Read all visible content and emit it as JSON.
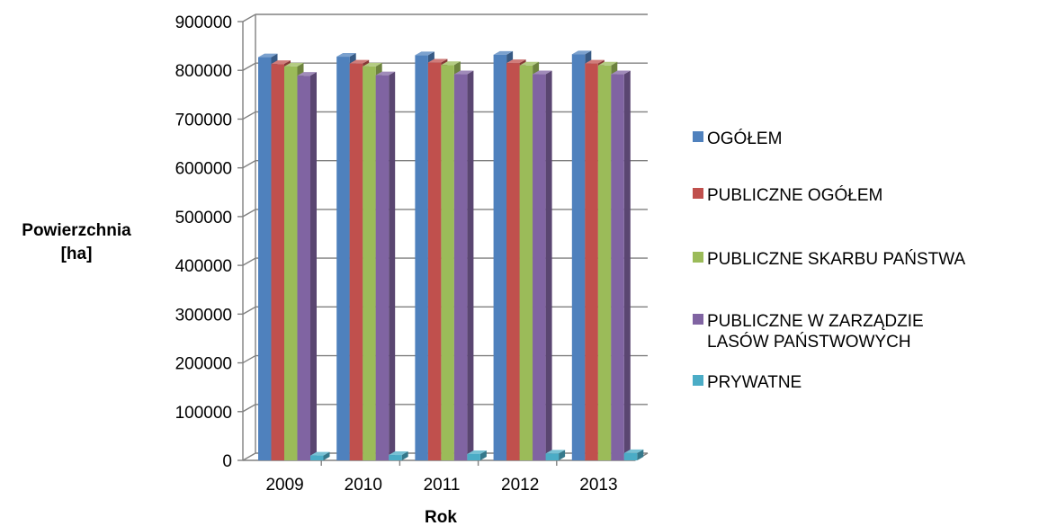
{
  "chart_data": {
    "type": "bar",
    "style": "3d-clustered-column",
    "categories": [
      "2009",
      "2010",
      "2011",
      "2012",
      "2013"
    ],
    "series": [
      {
        "name": "OGÓŁEM",
        "color": "#4F81BD",
        "values": [
          827000,
          828000,
          831000,
          832000,
          833000
        ]
      },
      {
        "name": "PUBLICZNE OGÓŁEM",
        "color": "#C0504D",
        "values": [
          813000,
          814000,
          816000,
          815000,
          814000
        ]
      },
      {
        "name": "PUBLICZNE SKARBU PAŃSTWA",
        "color": "#9BBB59",
        "values": [
          808000,
          808000,
          811000,
          810000,
          810000
        ]
      },
      {
        "name": "PUBLICZNE W ZARZĄDZIE LASÓW PAŃSTWOWYCH",
        "color": "#8064A2",
        "values": [
          789000,
          790000,
          792000,
          792000,
          792000
        ]
      },
      {
        "name": "PRYWATNE",
        "color": "#4BACC6",
        "values": [
          10000,
          11000,
          13000,
          14000,
          15000
        ]
      }
    ],
    "xlabel": "Rok",
    "ylabel_lines": [
      "Powierzchnia",
      "[ha]"
    ],
    "ylim": [
      0,
      900000
    ],
    "yticks": [
      "0",
      "100000",
      "200000",
      "300000",
      "400000",
      "500000",
      "600000",
      "700000",
      "800000",
      "900000"
    ],
    "grid": true,
    "legend_position": "right"
  }
}
